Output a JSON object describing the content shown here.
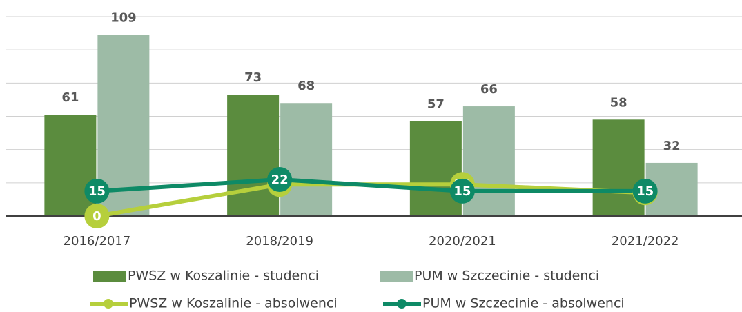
{
  "chart_data": {
    "type": "bar",
    "categories": [
      "2016/2017",
      "2018/2019",
      "2020/2021",
      "2021/2022"
    ],
    "ylim": [
      0,
      120
    ],
    "yticks": [
      20,
      40,
      60,
      80,
      100,
      120
    ],
    "grid": true,
    "series": [
      {
        "name": "PWSZ w Koszalinie - studenci",
        "type": "bar",
        "color": "#5b8c3e",
        "values": [
          61,
          73,
          57,
          58
        ]
      },
      {
        "name": "PUM w Szczecinie - studenci",
        "type": "bar",
        "color": "#9dbba6",
        "values": [
          109,
          68,
          66,
          32
        ]
      },
      {
        "name": "PWSZ w Koszalinie - absolwenci",
        "type": "line",
        "color": "#b6cf3c",
        "values": [
          0,
          19,
          19,
          14
        ]
      },
      {
        "name": "PUM w Szczecinie - absolwenci",
        "type": "line",
        "color": "#0e8a66",
        "values": [
          15,
          22,
          15,
          15
        ]
      }
    ]
  }
}
